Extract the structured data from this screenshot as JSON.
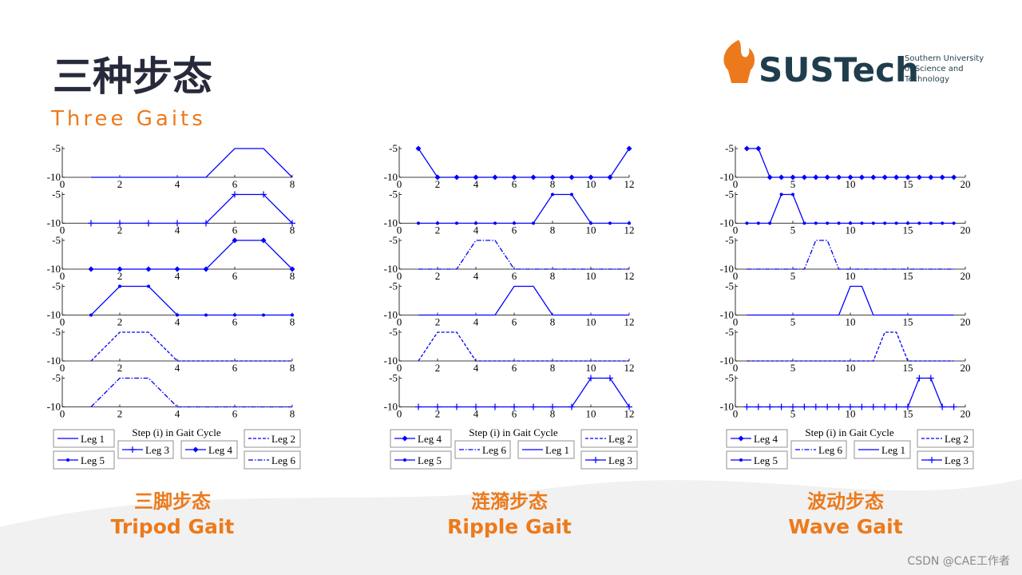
{
  "header": {
    "title": "三种步态",
    "subtitle": "Three Gaits"
  },
  "logo": {
    "name": "SUSTech",
    "tagline": [
      "Southern University",
      "of Science and",
      "Technology"
    ]
  },
  "watermark": "CSDN @CAE工作者",
  "chart_data": [
    {
      "type": "line",
      "title": "三脚步态",
      "subtitle": "Tripod Gait",
      "xlabel": "Step (i) in Gait Cycle",
      "x": [
        1,
        2,
        3,
        4,
        5,
        6,
        7,
        8
      ],
      "xlim": [
        0,
        8
      ],
      "xticks": [
        0,
        2,
        4,
        6,
        8
      ],
      "ylim": [
        -10,
        -5
      ],
      "yticks": [
        -10,
        -5
      ],
      "series": [
        {
          "name": "Leg 1",
          "color": "#0000ff",
          "dash": "solid",
          "marker": "none",
          "values": [
            -10,
            -10,
            -10,
            -10,
            -10,
            -5,
            -5,
            -10
          ]
        },
        {
          "name": "Leg 3",
          "color": "#0000ff",
          "dash": "solid",
          "marker": "plus",
          "values": [
            -10,
            -10,
            -10,
            -10,
            -10,
            -5,
            -5,
            -10
          ]
        },
        {
          "name": "Leg 4",
          "color": "#0000ff",
          "dash": "solid",
          "marker": "diamond",
          "values": [
            -10,
            -10,
            -10,
            -10,
            -10,
            -5,
            -5,
            -10
          ]
        },
        {
          "name": "Leg 5",
          "color": "#0000ff",
          "dash": "solid",
          "marker": "dot",
          "values": [
            -10,
            -5,
            -5,
            -10,
            -10,
            -10,
            -10,
            -10
          ]
        },
        {
          "name": "Leg 2",
          "color": "#0000ff",
          "dash": "dashed",
          "marker": "none",
          "values": [
            -10,
            -5,
            -5,
            -10,
            -10,
            -10,
            -10,
            -10
          ]
        },
        {
          "name": "Leg 6",
          "color": "#0000ff",
          "dash": "dashdot",
          "marker": "none",
          "values": [
            -10,
            -5,
            -5,
            -10,
            -10,
            -10,
            -10,
            -10
          ]
        }
      ]
    },
    {
      "type": "line",
      "title": "涟漪步态",
      "subtitle": "Ripple Gait",
      "xlabel": "Step (i) in Gait Cycle",
      "x": [
        1,
        2,
        3,
        4,
        5,
        6,
        7,
        8,
        9,
        10,
        11,
        12
      ],
      "xlim": [
        0,
        12
      ],
      "xticks": [
        0,
        2,
        4,
        6,
        8,
        10,
        12
      ],
      "ylim": [
        -10,
        -5
      ],
      "yticks": [
        -10,
        -5
      ],
      "series": [
        {
          "name": "Leg 4",
          "color": "#0000ff",
          "dash": "solid",
          "marker": "diamond",
          "values": [
            -5,
            -10,
            -10,
            -10,
            -10,
            -10,
            -10,
            -10,
            -10,
            -10,
            -10,
            -5
          ]
        },
        {
          "name": "Leg 5",
          "color": "#0000ff",
          "dash": "solid",
          "marker": "dot",
          "values": [
            -10,
            -10,
            -10,
            -10,
            -10,
            -10,
            -10,
            -5,
            -5,
            -10,
            -10,
            -10
          ]
        },
        {
          "name": "Leg 6",
          "color": "#0000ff",
          "dash": "dashdot",
          "marker": "none",
          "values": [
            -10,
            -10,
            -10,
            -5,
            -5,
            -10,
            -10,
            -10,
            -10,
            -10,
            -10,
            -10
          ]
        },
        {
          "name": "Leg 1",
          "color": "#0000ff",
          "dash": "solid",
          "marker": "none",
          "values": [
            -10,
            -10,
            -10,
            -10,
            -10,
            -5,
            -5,
            -10,
            -10,
            -10,
            -10,
            -10
          ]
        },
        {
          "name": "Leg 2",
          "color": "#0000ff",
          "dash": "dashed",
          "marker": "none",
          "values": [
            -10,
            -5,
            -5,
            -10,
            -10,
            -10,
            -10,
            -10,
            -10,
            -10,
            -10,
            -10
          ]
        },
        {
          "name": "Leg 3",
          "color": "#0000ff",
          "dash": "solid",
          "marker": "plus",
          "values": [
            -10,
            -10,
            -10,
            -10,
            -10,
            -10,
            -10,
            -10,
            -10,
            -5,
            -5,
            -10
          ]
        }
      ]
    },
    {
      "type": "line",
      "title": "波动步态",
      "subtitle": "Wave Gait",
      "xlabel": "Step (i) in Gait Cycle",
      "x": [
        1,
        2,
        3,
        4,
        5,
        6,
        7,
        8,
        9,
        10,
        11,
        12,
        13,
        14,
        15,
        16,
        17,
        18,
        19
      ],
      "xlim": [
        0,
        20
      ],
      "xticks": [
        0,
        5,
        10,
        15,
        20
      ],
      "ylim": [
        -10,
        -5
      ],
      "yticks": [
        -10,
        -5
      ],
      "series": [
        {
          "name": "Leg 4",
          "color": "#0000ff",
          "dash": "solid",
          "marker": "diamond",
          "values": [
            -5,
            -5,
            -10,
            -10,
            -10,
            -10,
            -10,
            -10,
            -10,
            -10,
            -10,
            -10,
            -10,
            -10,
            -10,
            -10,
            -10,
            -10,
            -10
          ]
        },
        {
          "name": "Leg 5",
          "color": "#0000ff",
          "dash": "solid",
          "marker": "dot",
          "values": [
            -10,
            -10,
            -10,
            -5,
            -5,
            -10,
            -10,
            -10,
            -10,
            -10,
            -10,
            -10,
            -10,
            -10,
            -10,
            -10,
            -10,
            -10,
            -10
          ]
        },
        {
          "name": "Leg 6",
          "color": "#0000ff",
          "dash": "dashdot",
          "marker": "none",
          "values": [
            -10,
            -10,
            -10,
            -10,
            -10,
            -10,
            -5,
            -5,
            -10,
            -10,
            -10,
            -10,
            -10,
            -10,
            -10,
            -10,
            -10,
            -10,
            -10
          ]
        },
        {
          "name": "Leg 1",
          "color": "#0000ff",
          "dash": "solid",
          "marker": "none",
          "values": [
            -10,
            -10,
            -10,
            -10,
            -10,
            -10,
            -10,
            -10,
            -10,
            -5,
            -5,
            -10,
            -10,
            -10,
            -10,
            -10,
            -10,
            -10,
            -10
          ]
        },
        {
          "name": "Leg 2",
          "color": "#0000ff",
          "dash": "dashed",
          "marker": "none",
          "values": [
            -10,
            -10,
            -10,
            -10,
            -10,
            -10,
            -10,
            -10,
            -10,
            -10,
            -10,
            -10,
            -5,
            -5,
            -10,
            -10,
            -10,
            -10,
            -10
          ]
        },
        {
          "name": "Leg 3",
          "color": "#0000ff",
          "dash": "solid",
          "marker": "plus",
          "values": [
            -10,
            -10,
            -10,
            -10,
            -10,
            -10,
            -10,
            -10,
            -10,
            -10,
            -10,
            -10,
            -10,
            -10,
            -10,
            -5,
            -5,
            -10,
            -10
          ]
        }
      ]
    }
  ]
}
